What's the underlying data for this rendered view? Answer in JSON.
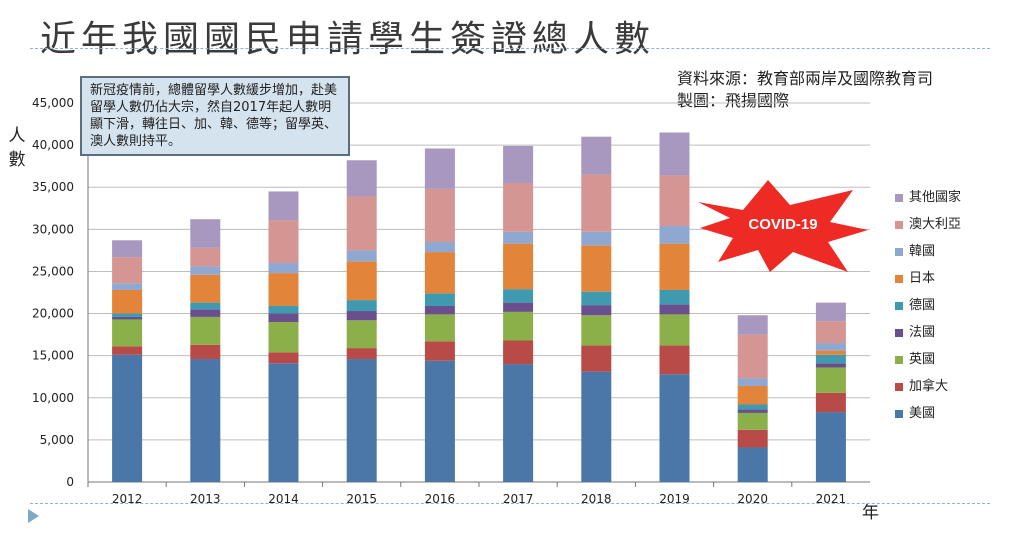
{
  "slide": {
    "title": "近年我國國民申請學生簽證總人數",
    "source_lines": [
      "資料來源：教育部兩岸及國際教育司",
      "製圖：飛揚國際"
    ],
    "note_text": "新冠疫情前，總體留學人數緩步增加，赴美留學人數仍佔大宗，然自2017年起人數明顯下滑，轉往日、加、韓、德等；留學英、澳人數則持平。",
    "covid_label": "COVID-19",
    "colors": {
      "title": "#3a3a3a",
      "note_bg": "#d5e3ef",
      "note_border": "#5a6e80",
      "covid_star": "#ee2a24",
      "rule": "#8fb3c8"
    }
  },
  "chart_data": {
    "type": "bar",
    "stacked": true,
    "categories": [
      "2012",
      "2013",
      "2014",
      "2015",
      "2016",
      "2017",
      "2018",
      "2019",
      "2020",
      "2021"
    ],
    "ylabel": "人數",
    "xlabel": "年",
    "ylim": [
      0,
      45000
    ],
    "yticks": [
      0,
      5000,
      10000,
      15000,
      20000,
      25000,
      30000,
      35000,
      40000,
      45000
    ],
    "ytick_labels": [
      "0",
      "5,000",
      "10,000",
      "15,000",
      "20,000",
      "25,000",
      "30,000",
      "35,000",
      "40,000",
      "45,000"
    ],
    "grid": true,
    "legend_position": "right",
    "series": [
      {
        "name": "美國",
        "color": "#4a76a8",
        "values": [
          15100,
          14600,
          14100,
          14600,
          14400,
          14000,
          13100,
          12800,
          4100,
          8300
        ]
      },
      {
        "name": "加拿大",
        "color": "#b84a47",
        "values": [
          1000,
          1700,
          1300,
          1300,
          2300,
          2800,
          3100,
          3400,
          2100,
          2300
        ]
      },
      {
        "name": "英國",
        "color": "#8bb04a",
        "values": [
          3200,
          3300,
          3600,
          3300,
          3200,
          3400,
          3600,
          3700,
          2000,
          3000
        ]
      },
      {
        "name": "法國",
        "color": "#6a4f8e",
        "values": [
          300,
          900,
          1000,
          1100,
          1000,
          1100,
          1200,
          1200,
          400,
          500
        ]
      },
      {
        "name": "德國",
        "color": "#3f9ab0",
        "values": [
          400,
          800,
          900,
          1300,
          1500,
          1600,
          1600,
          1700,
          600,
          1000
        ]
      },
      {
        "name": "日本",
        "color": "#e2853a",
        "values": [
          2800,
          3300,
          3900,
          4600,
          4900,
          5400,
          5500,
          5500,
          2200,
          500
        ]
      },
      {
        "name": "韓國",
        "color": "#8ea8d2",
        "values": [
          800,
          1000,
          1200,
          1300,
          1200,
          1400,
          1600,
          2100,
          900,
          900
        ]
      },
      {
        "name": "澳大利亞",
        "color": "#d59593",
        "values": [
          3100,
          2200,
          5100,
          6400,
          6300,
          5800,
          6800,
          6000,
          5200,
          2600
        ]
      },
      {
        "name": "其他國家",
        "color": "#a898c0",
        "values": [
          2000,
          3400,
          3400,
          4300,
          4800,
          4400,
          4500,
          5100,
          2300,
          2200
        ]
      }
    ]
  }
}
